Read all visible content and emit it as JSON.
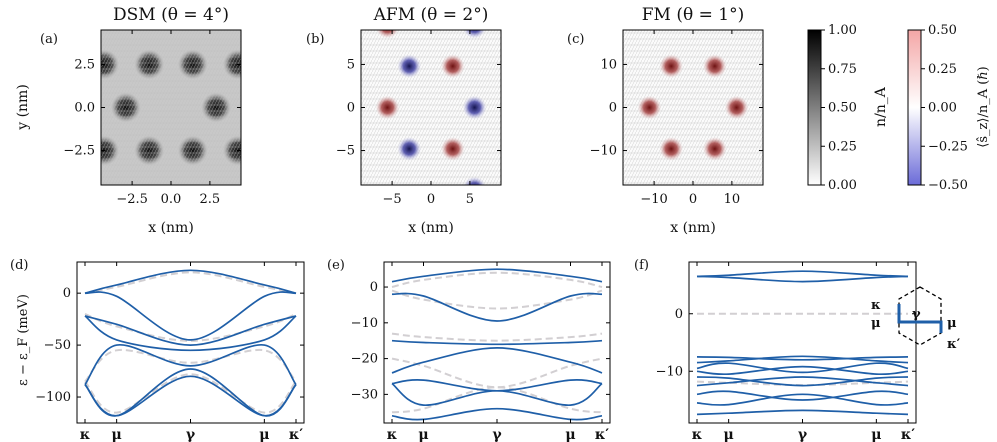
{
  "figure": {
    "panel_top": [
      {
        "tag": "(a)",
        "title": "DSM (θ = 4°)",
        "xlabel": "x (nm)",
        "ylabel": "y (nm)",
        "xticks": [
          "−2.5",
          "0.0",
          "2.5"
        ],
        "yticks": [
          "2.5",
          "0.0",
          "−2.5"
        ]
      },
      {
        "tag": "(b)",
        "title": "AFM (θ = 2°)",
        "xlabel": "x (nm)",
        "ylabel": "",
        "xticks": [
          "−5",
          "0",
          "5"
        ],
        "yticks": [
          "5",
          "0",
          "−5"
        ]
      },
      {
        "tag": "(c)",
        "title": "FM (θ = 1°)",
        "xlabel": "x (nm)",
        "ylabel": "",
        "xticks": [
          "−10",
          "0",
          "10"
        ],
        "yticks": [
          "10",
          "0",
          "−10"
        ]
      }
    ],
    "colorbar_n": {
      "label": "n/n_A",
      "ticks": [
        "1.00",
        "0.75",
        "0.50",
        "0.25",
        "0.00"
      ]
    },
    "colorbar_s": {
      "label": "⟨ŝ_z⟩/n_A (ℏ)",
      "ticks": [
        "0.50",
        "0.25",
        "0.00",
        "−0.25",
        "−0.50"
      ]
    },
    "panel_bottom": [
      {
        "tag": "(d)",
        "ylabel": "ε − ε_F (meV)",
        "yticks": [
          "0",
          "−50",
          "−100"
        ]
      },
      {
        "tag": "(e)",
        "ylabel": "",
        "yticks": [
          "0",
          "−10",
          "−20",
          "−30"
        ]
      },
      {
        "tag": "(f)",
        "ylabel": "",
        "yticks": [
          "0",
          "−10"
        ]
      }
    ],
    "kpath_labels": [
      "κ",
      "μ",
      "γ",
      "μ",
      "κ′"
    ],
    "bz_inset_labels": [
      "κ",
      "μ",
      "γ",
      "μ",
      "κ′"
    ]
  },
  "chart_data": [
    {
      "type": "heatmap",
      "title": "DSM (θ = 4°)",
      "quantity": "n/n_A",
      "xlabel": "x (nm)",
      "ylabel": "y (nm)",
      "xlim": [
        -4.5,
        4.5
      ],
      "ylim": [
        -4.5,
        4.5
      ],
      "clim": [
        0,
        1
      ],
      "density_peaks": [
        [
          -1.4,
          2.5
        ],
        [
          1.4,
          2.5
        ],
        [
          -2.9,
          0
        ],
        [
          2.9,
          0
        ],
        [
          -1.4,
          -2.5
        ],
        [
          1.4,
          -2.5
        ],
        [
          -4.3,
          2.5
        ],
        [
          4.3,
          2.5
        ],
        [
          -4.3,
          -2.5
        ],
        [
          4.3,
          -2.5
        ]
      ]
    },
    {
      "type": "heatmap",
      "title": "AFM (θ = 2°)",
      "quantity": "⟨s_z⟩/n_A",
      "xlabel": "x (nm)",
      "xlim": [
        -9,
        9
      ],
      "ylim": [
        -9,
        9
      ],
      "clim": [
        -0.5,
        0.5
      ],
      "spin_up": [
        [
          2.8,
          4.8
        ],
        [
          -5.6,
          0
        ],
        [
          2.8,
          -4.8
        ],
        [
          -5.6,
          9.4
        ]
      ],
      "spin_down": [
        [
          -2.8,
          4.8
        ],
        [
          5.6,
          0
        ],
        [
          -2.8,
          -4.8
        ],
        [
          5.6,
          9.4
        ],
        [
          5.6,
          -9.4
        ]
      ]
    },
    {
      "type": "heatmap",
      "title": "FM (θ = 1°)",
      "quantity": "⟨s_z⟩/n_A",
      "xlabel": "x (nm)",
      "xlim": [
        -18,
        18
      ],
      "ylim": [
        -18,
        18
      ],
      "clim": [
        -0.5,
        0.5
      ],
      "spin_up": [
        [
          -5.6,
          9.6
        ],
        [
          5.6,
          9.6
        ],
        [
          -11.2,
          0
        ],
        [
          11.2,
          0
        ],
        [
          -5.6,
          -9.6
        ],
        [
          5.6,
          -9.6
        ]
      ]
    },
    {
      "type": "line",
      "panel": "(d)",
      "ylabel": "ε − ε_F (meV)",
      "ylim": [
        -125,
        30
      ],
      "x": [
        0,
        0.15,
        0.5,
        0.85,
        1
      ],
      "xtick_labels": [
        "κ",
        "μ",
        "γ",
        "μ",
        "κ′"
      ],
      "series": [
        {
          "name": "band",
          "values": [
            0,
            8,
            22,
            8,
            0
          ]
        },
        {
          "name": "band",
          "values": [
            0,
            -3,
            -45,
            -3,
            0
          ]
        },
        {
          "name": "band",
          "values": [
            -22,
            -30,
            -50,
            -30,
            -22
          ]
        },
        {
          "name": "band",
          "values": [
            -22,
            -45,
            -55,
            -45,
            -22
          ]
        },
        {
          "name": "band",
          "values": [
            -88,
            -50,
            -70,
            -50,
            -88
          ]
        },
        {
          "name": "band",
          "values": [
            -88,
            -118,
            -73,
            -118,
            -88
          ]
        },
        {
          "name": "band",
          "values": [
            -88,
            -118,
            -80,
            -118,
            -88
          ]
        },
        {
          "name": "reference",
          "style": "dashed",
          "values": [
            0,
            6,
            20,
            6,
            0
          ]
        },
        {
          "name": "reference",
          "style": "dashed",
          "values": [
            -20,
            -32,
            -46,
            -32,
            -20
          ]
        },
        {
          "name": "reference",
          "style": "dashed",
          "values": [
            -85,
            -55,
            -67,
            -55,
            -85
          ]
        },
        {
          "name": "reference",
          "style": "dashed",
          "values": [
            -85,
            -115,
            -78,
            -115,
            -85
          ]
        }
      ]
    },
    {
      "type": "line",
      "panel": "(e)",
      "ylim": [
        -38,
        7
      ],
      "x": [
        0,
        0.15,
        0.5,
        0.85,
        1
      ],
      "xtick_labels": [
        "κ",
        "μ",
        "γ",
        "μ",
        "κ′"
      ],
      "series": [
        {
          "name": "band",
          "values": [
            1.5,
            3,
            5,
            3,
            1.5
          ]
        },
        {
          "name": "band",
          "values": [
            -2,
            -2.5,
            -9.5,
            -2.5,
            -2
          ]
        },
        {
          "name": "band",
          "values": [
            -15,
            -15.5,
            -16,
            -15.5,
            -15
          ]
        },
        {
          "name": "band",
          "values": [
            -24,
            -21,
            -17,
            -21,
            -24
          ]
        },
        {
          "name": "band",
          "values": [
            -27,
            -26,
            -29,
            -26,
            -27
          ]
        },
        {
          "name": "band",
          "values": [
            -27,
            -33,
            -29,
            -33,
            -27
          ]
        },
        {
          "name": "band",
          "values": [
            -36,
            -37,
            -34,
            -37,
            -36
          ]
        },
        {
          "name": "reference",
          "style": "dashed",
          "values": [
            0,
            2,
            4,
            2,
            0
          ]
        },
        {
          "name": "reference",
          "style": "dashed",
          "values": [
            -1,
            -3.5,
            -6,
            -3.5,
            -1
          ]
        },
        {
          "name": "reference",
          "style": "dashed",
          "values": [
            -13,
            -14,
            -15,
            -14,
            -13
          ]
        },
        {
          "name": "reference",
          "style": "dashed",
          "values": [
            -20,
            -22,
            -28,
            -22,
            -20
          ]
        },
        {
          "name": "reference",
          "style": "dashed",
          "values": [
            -35,
            -34,
            -28,
            -34,
            -35
          ]
        }
      ]
    },
    {
      "type": "line",
      "panel": "(f)",
      "ylim": [
        -19,
        9
      ],
      "x": [
        0,
        0.15,
        0.5,
        0.85,
        1
      ],
      "xtick_labels": [
        "κ",
        "μ",
        "γ",
        "μ",
        "κ′"
      ],
      "series": [
        {
          "name": "band",
          "values": [
            6.5,
            6.7,
            7.4,
            6.7,
            6.5
          ]
        },
        {
          "name": "band",
          "values": [
            6.5,
            6.3,
            5.6,
            6.3,
            6.5
          ]
        },
        {
          "name": "band",
          "values": [
            -7.5,
            -7.6,
            -8,
            -7.6,
            -7.5
          ]
        },
        {
          "name": "band",
          "values": [
            -8.5,
            -8.2,
            -7.4,
            -8.2,
            -8.5
          ]
        },
        {
          "name": "band",
          "values": [
            -9.5,
            -8.6,
            -10.2,
            -8.6,
            -9.5
          ]
        },
        {
          "name": "band",
          "values": [
            -10,
            -10.5,
            -9.2,
            -10.5,
            -10
          ]
        },
        {
          "name": "band",
          "values": [
            -11,
            -11.2,
            -12.5,
            -11.2,
            -11
          ]
        },
        {
          "name": "band",
          "values": [
            -12.5,
            -12,
            -11,
            -12,
            -12.5
          ]
        },
        {
          "name": "band",
          "values": [
            -14,
            -13.5,
            -15,
            -13.5,
            -14
          ]
        },
        {
          "name": "band",
          "values": [
            -15.5,
            -15.8,
            -14,
            -15.8,
            -15.5
          ]
        },
        {
          "name": "band",
          "values": [
            -17.5,
            -17.3,
            -16.8,
            -17.3,
            -17.5
          ]
        },
        {
          "name": "reference",
          "style": "dashed",
          "values": [
            0,
            0,
            0,
            0,
            0
          ]
        },
        {
          "name": "reference",
          "style": "dashed",
          "values": [
            -11.8,
            -12,
            -12.4,
            -12,
            -11.8
          ]
        }
      ]
    }
  ]
}
